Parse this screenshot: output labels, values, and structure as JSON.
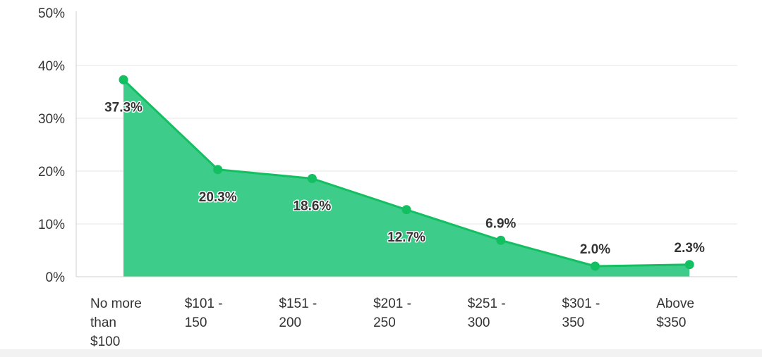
{
  "chart_data": {
    "type": "area",
    "categories": [
      [
        "No more",
        "than",
        "$100"
      ],
      [
        "$101 -",
        "150"
      ],
      [
        "$151 -",
        "200"
      ],
      [
        "$201 -",
        "250"
      ],
      [
        "$251 -",
        "300"
      ],
      [
        "$301 -",
        "350"
      ],
      [
        "Above",
        "$350"
      ]
    ],
    "values": [
      37.3,
      20.3,
      18.6,
      12.7,
      6.9,
      2.0,
      2.3
    ],
    "value_labels": [
      "37.3%",
      "20.3%",
      "18.6%",
      "12.7%",
      "6.9%",
      "2.0%",
      "2.3%"
    ],
    "label_position": [
      "below",
      "below",
      "below",
      "below",
      "above",
      "above",
      "above"
    ],
    "yticks": [
      "0%",
      "10%",
      "20%",
      "30%",
      "40%",
      "50%"
    ],
    "ylim": [
      0,
      50
    ],
    "grid": true,
    "colors": {
      "fill": "#3ecc8a",
      "line": "#12bf61",
      "marker": "#12bf61",
      "grid": "#e6e6e6",
      "axis": "#cfcfcf"
    }
  }
}
